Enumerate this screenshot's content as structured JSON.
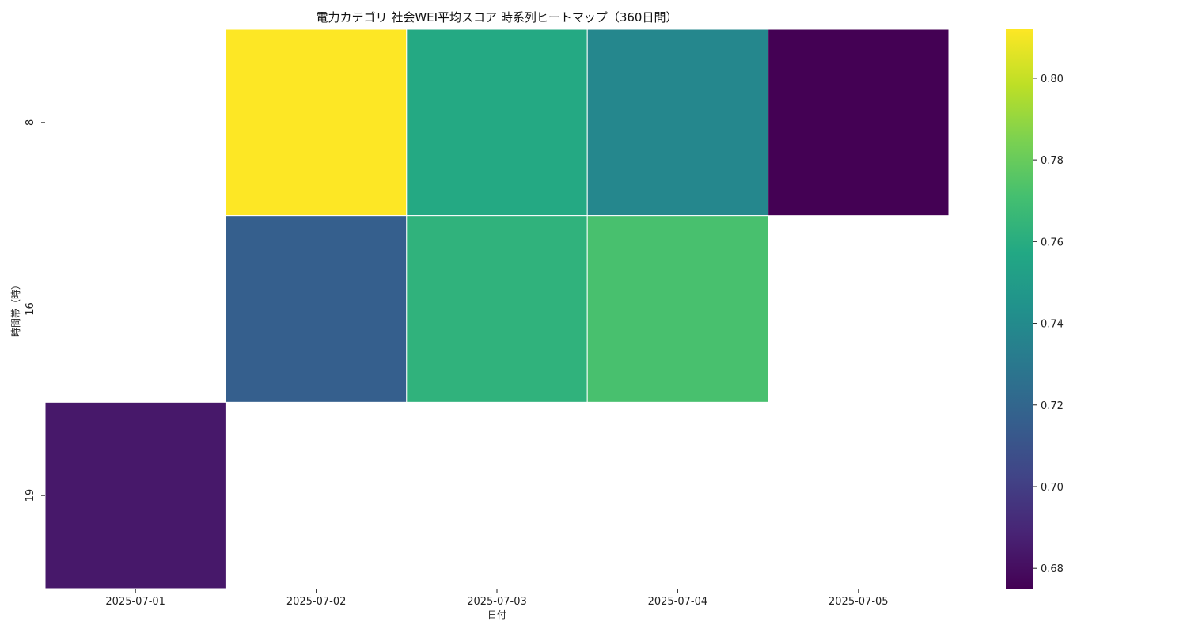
{
  "chart_data": {
    "type": "heatmap",
    "title": "電力カテゴリ 社会WEI平均スコア 時系列ヒートマップ（360日間）",
    "xlabel": "日付",
    "ylabel": "時間帯（時）",
    "x": [
      "2025-07-01",
      "2025-07-02",
      "2025-07-03",
      "2025-07-04",
      "2025-07-05"
    ],
    "y": [
      "8",
      "16",
      "19"
    ],
    "values": [
      [
        null,
        0.812,
        0.758,
        0.738,
        0.675
      ],
      [
        null,
        0.716,
        0.763,
        0.772,
        null
      ],
      [
        0.684,
        null,
        null,
        null,
        null
      ]
    ],
    "colorbar": {
      "min": 0.675,
      "max": 0.812,
      "ticks": [
        "0.68",
        "0.70",
        "0.72",
        "0.74",
        "0.76",
        "0.78",
        "0.80"
      ],
      "colormap": "viridis"
    },
    "legend": "right"
  }
}
